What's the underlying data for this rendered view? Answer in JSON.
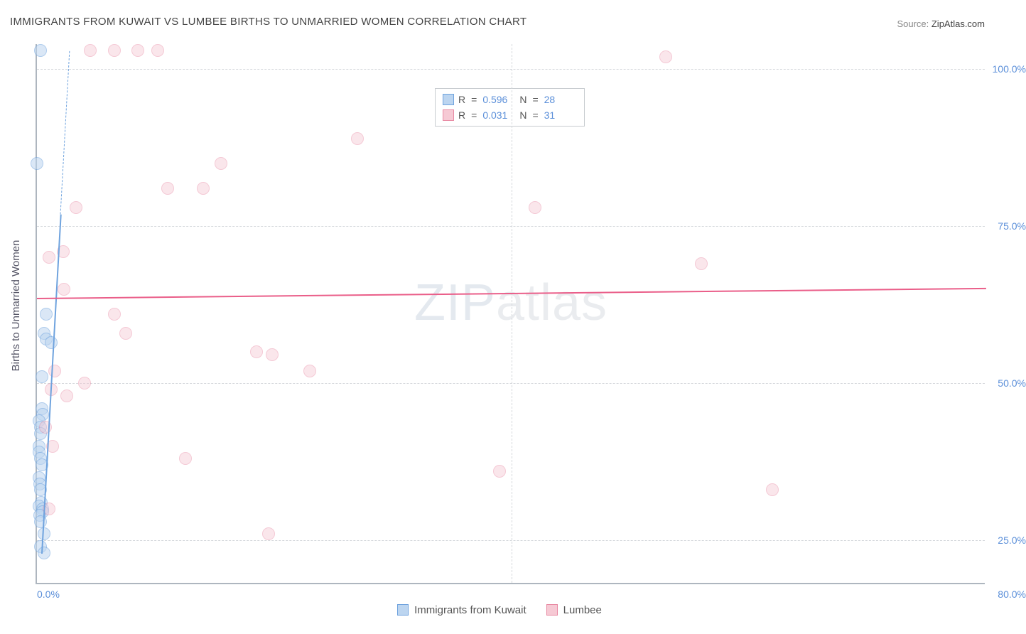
{
  "title": "IMMIGRANTS FROM KUWAIT VS LUMBEE BIRTHS TO UNMARRIED WOMEN CORRELATION CHART",
  "source": {
    "label": "Source: ",
    "value": "ZipAtlas.com"
  },
  "ylabel": "Births to Unmarried Women",
  "watermark": {
    "left": "ZIP",
    "right": "atlas"
  },
  "chart": {
    "type": "scatter",
    "background_color": "#ffffff",
    "axis_color": "#aeb6bf",
    "grid_color": "#d5d8dc",
    "tick_color": "#5b8fd9",
    "label_color": "#556",
    "xlim": [
      0,
      80
    ],
    "ylim": [
      18,
      104
    ],
    "xticks": [
      0.0,
      80.0
    ],
    "xtick_labels": [
      "0.0%",
      "80.0%"
    ],
    "yticks": [
      25.0,
      50.0,
      75.0,
      100.0
    ],
    "ytick_labels": [
      "25.0%",
      "50.0%",
      "75.0%",
      "100.0%"
    ],
    "xgrid_at": [
      40.0
    ],
    "point_radius": 9,
    "point_border_width": 1
  },
  "series": [
    {
      "id": "kuwait",
      "label": "Immigrants from Kuwait",
      "fill": "#bcd5f0",
      "stroke": "#6fa3de",
      "fill_opacity": 0.55,
      "R": "0.596",
      "N": "28",
      "trend": {
        "x1": 0.4,
        "y1": 23,
        "x2": 2.0,
        "y2": 77,
        "color": "#6fa3de",
        "width": 2,
        "dash_extend_to_y": 103
      },
      "points": [
        [
          0.3,
          103
        ],
        [
          0.0,
          85
        ],
        [
          0.8,
          61
        ],
        [
          0.6,
          58
        ],
        [
          0.8,
          57
        ],
        [
          1.2,
          56.5
        ],
        [
          0.4,
          51
        ],
        [
          0.4,
          46
        ],
        [
          0.5,
          45
        ],
        [
          0.2,
          44
        ],
        [
          0.3,
          43
        ],
        [
          0.3,
          42
        ],
        [
          0.15,
          40
        ],
        [
          0.2,
          39
        ],
        [
          0.3,
          38
        ],
        [
          0.4,
          37
        ],
        [
          0.2,
          35
        ],
        [
          0.25,
          34
        ],
        [
          0.3,
          33
        ],
        [
          0.35,
          31
        ],
        [
          0.2,
          30.5
        ],
        [
          0.45,
          30
        ],
        [
          0.5,
          29.5
        ],
        [
          0.25,
          29
        ],
        [
          0.3,
          28
        ],
        [
          0.6,
          26
        ],
        [
          0.3,
          24
        ],
        [
          0.6,
          23
        ]
      ]
    },
    {
      "id": "lumbee",
      "label": "Lumbee",
      "fill": "#f6c9d4",
      "stroke": "#e889a3",
      "fill_opacity": 0.45,
      "R": "0.031",
      "N": "31",
      "trend": {
        "x1": 0,
        "y1": 63.6,
        "x2": 80,
        "y2": 65.2,
        "color": "#ea5e89",
        "width": 2
      },
      "points": [
        [
          4.5,
          103
        ],
        [
          6.5,
          103
        ],
        [
          8.5,
          103
        ],
        [
          10.2,
          103
        ],
        [
          53,
          102
        ],
        [
          27,
          89
        ],
        [
          15.5,
          85
        ],
        [
          11,
          81
        ],
        [
          14,
          81
        ],
        [
          3.3,
          78
        ],
        [
          42,
          78
        ],
        [
          2.2,
          71
        ],
        [
          1.0,
          70
        ],
        [
          56,
          69
        ],
        [
          2.3,
          65
        ],
        [
          6.5,
          61
        ],
        [
          7.5,
          58
        ],
        [
          1.5,
          52
        ],
        [
          18.5,
          55
        ],
        [
          19.8,
          54.5
        ],
        [
          23,
          52
        ],
        [
          4.0,
          50
        ],
        [
          1.2,
          49
        ],
        [
          2.5,
          48
        ],
        [
          0.7,
          43
        ],
        [
          1.3,
          40
        ],
        [
          12.5,
          38
        ],
        [
          39,
          36
        ],
        [
          62,
          33
        ],
        [
          19.5,
          26
        ],
        [
          1.0,
          30
        ]
      ]
    }
  ],
  "legend_top": {
    "rows": [
      {
        "series": 0,
        "items": [
          [
            "R",
            "0.596"
          ],
          [
            "N",
            "28"
          ]
        ]
      },
      {
        "series": 1,
        "items": [
          [
            "R",
            "0.031"
          ],
          [
            "N",
            "31"
          ]
        ]
      }
    ]
  },
  "legend_bottom": {
    "items": [
      {
        "series": 0
      },
      {
        "series": 1
      }
    ]
  }
}
